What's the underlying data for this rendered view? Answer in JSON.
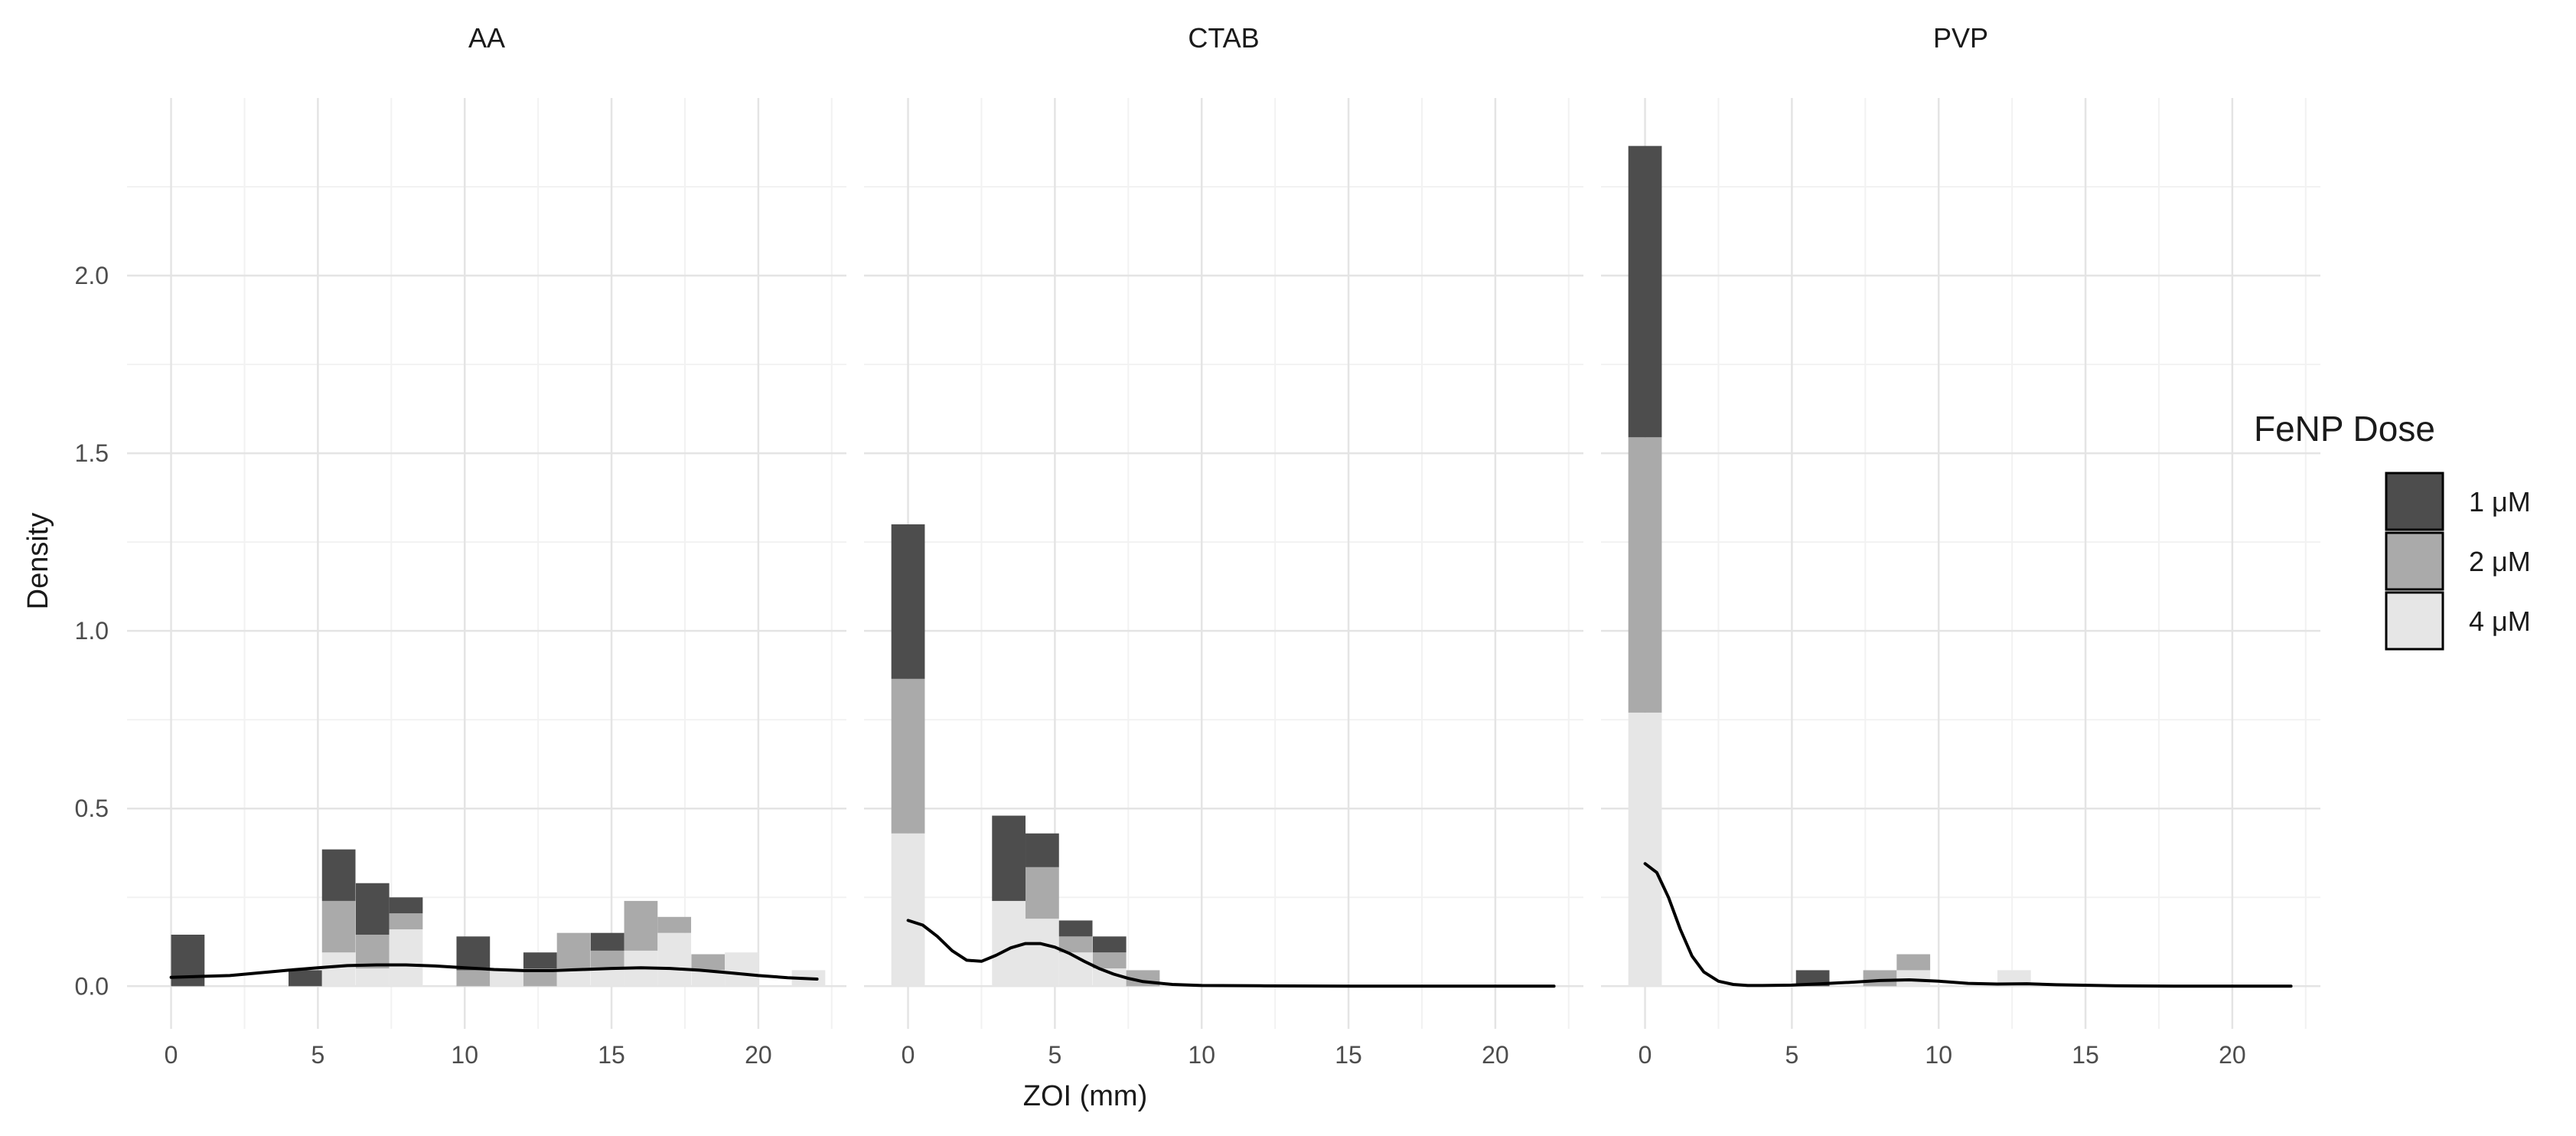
{
  "chart_data": {
    "type": "histogram-facet",
    "xlabel": "ZOI (mm)",
    "ylabel": "Density",
    "xlim": [
      -1.5,
      23.0
    ],
    "ylim": [
      -0.12,
      2.5
    ],
    "x_ticks": [
      "0",
      "5",
      "10",
      "15",
      "20"
    ],
    "x_tick_values": [
      0,
      5,
      10,
      15,
      20
    ],
    "y_ticks": [
      "0.0",
      "0.5",
      "1.0",
      "1.5",
      "2.0"
    ],
    "y_tick_values": [
      0.0,
      0.5,
      1.0,
      1.5,
      2.0
    ],
    "bin_width": 1.14,
    "legend": {
      "title": "FeNP Dose",
      "placement": "right",
      "items": [
        {
          "label": "1 μM",
          "color": "#4d4d4d"
        },
        {
          "label": "2 μM",
          "color": "#aaaaaa"
        },
        {
          "label": "4 μM",
          "color": "#e6e6e6"
        }
      ]
    },
    "density_color": "#000000",
    "facets": [
      {
        "title": "AA",
        "bins": [
          {
            "x": 0.57,
            "values": [
              0.145,
              0,
              0
            ]
          },
          {
            "x": 4.57,
            "values": [
              0.045,
              0,
              0
            ]
          },
          {
            "x": 5.71,
            "values": [
              0.145,
              0.145,
              0.095
            ]
          },
          {
            "x": 6.86,
            "values": [
              0.145,
              0.095,
              0.05
            ]
          },
          {
            "x": 8.0,
            "values": [
              0.045,
              0.045,
              0.16
            ]
          },
          {
            "x": 10.29,
            "values": [
              0.095,
              0.045,
              0
            ]
          },
          {
            "x": 11.43,
            "values": [
              0,
              0,
              0.045
            ]
          },
          {
            "x": 12.57,
            "values": [
              0.045,
              0.05,
              0
            ]
          },
          {
            "x": 13.71,
            "values": [
              0,
              0.1,
              0.05
            ]
          },
          {
            "x": 14.86,
            "values": [
              0.05,
              0.05,
              0.05
            ]
          },
          {
            "x": 16.0,
            "values": [
              0,
              0.14,
              0.1
            ]
          },
          {
            "x": 17.14,
            "values": [
              0,
              0.045,
              0.15
            ]
          },
          {
            "x": 18.29,
            "values": [
              0,
              0.045,
              0.045
            ]
          },
          {
            "x": 19.43,
            "values": [
              0,
              0,
              0.095
            ]
          },
          {
            "x": 21.71,
            "values": [
              0,
              0,
              0.045
            ]
          }
        ],
        "density_x": [
          0,
          2,
          4,
          5,
          6,
          7,
          8,
          9,
          10,
          11,
          12,
          13,
          14,
          15,
          16,
          17,
          18,
          19,
          20,
          21,
          22
        ],
        "density_y": [
          0.025,
          0.03,
          0.045,
          0.052,
          0.058,
          0.06,
          0.06,
          0.057,
          0.052,
          0.047,
          0.044,
          0.044,
          0.047,
          0.05,
          0.052,
          0.05,
          0.045,
          0.038,
          0.03,
          0.024,
          0.02
        ]
      },
      {
        "title": "CTAB",
        "bins": [
          {
            "x": 0.0,
            "values": [
              0.435,
              0.435,
              0.43
            ]
          },
          {
            "x": 3.43,
            "values": [
              0.24,
              0.0,
              0.24
            ]
          },
          {
            "x": 4.57,
            "values": [
              0.095,
              0.145,
              0.19
            ]
          },
          {
            "x": 5.71,
            "values": [
              0.045,
              0.045,
              0.095
            ]
          },
          {
            "x": 6.86,
            "values": [
              0.045,
              0.045,
              0.05
            ]
          },
          {
            "x": 8.0,
            "values": [
              0,
              0.045,
              0
            ]
          }
        ],
        "density_x": [
          0,
          0.5,
          1,
          1.5,
          2,
          2.5,
          3,
          3.5,
          4,
          4.5,
          5,
          5.5,
          6,
          6.5,
          7,
          7.5,
          8,
          9,
          10,
          12,
          15,
          18,
          22
        ],
        "density_y": [
          0.185,
          0.172,
          0.14,
          0.1,
          0.073,
          0.07,
          0.087,
          0.108,
          0.12,
          0.12,
          0.11,
          0.092,
          0.07,
          0.05,
          0.034,
          0.022,
          0.013,
          0.005,
          0.002,
          0.001,
          0,
          0,
          0
        ]
      },
      {
        "title": "PVP",
        "bins": [
          {
            "x": 0.0,
            "values": [
              0.82,
              0.775,
              0.77
            ]
          },
          {
            "x": 5.71,
            "values": [
              0.045,
              0,
              0
            ]
          },
          {
            "x": 8.0,
            "values": [
              0,
              0.045,
              0
            ]
          },
          {
            "x": 9.14,
            "values": [
              0,
              0.045,
              0.045
            ]
          },
          {
            "x": 12.57,
            "values": [
              0,
              0,
              0.045
            ]
          }
        ],
        "density_x": [
          0,
          0.4,
          0.8,
          1.2,
          1.6,
          2,
          2.5,
          3,
          3.5,
          4,
          5,
          6,
          7,
          8,
          9,
          10,
          11,
          12,
          13,
          14,
          16,
          18,
          22
        ],
        "density_y": [
          0.345,
          0.32,
          0.25,
          0.16,
          0.085,
          0.04,
          0.014,
          0.005,
          0.002,
          0.002,
          0.003,
          0.007,
          0.011,
          0.016,
          0.018,
          0.014,
          0.008,
          0.006,
          0.007,
          0.004,
          0.001,
          0,
          0
        ]
      }
    ]
  }
}
